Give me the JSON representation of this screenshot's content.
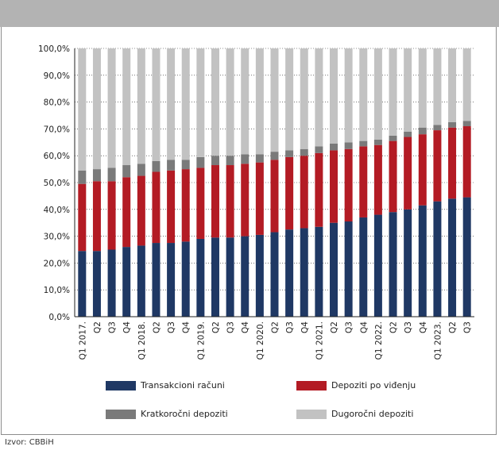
{
  "source_label": "Izvor: CBBiH",
  "chart_data": {
    "type": "bar",
    "stacked": true,
    "ylim": [
      0,
      100
    ],
    "y_ticks": [
      "0,0%",
      "10,0%",
      "20,0%",
      "30,0%",
      "40,0%",
      "50,0%",
      "60,0%",
      "70,0%",
      "80,0%",
      "90,0%",
      "100,0%"
    ],
    "grid": true,
    "legend_position": "bottom",
    "categories": [
      "Q1 2017.",
      "Q2",
      "Q3",
      "Q4",
      "Q1 2018.",
      "Q2",
      "Q3",
      "Q4",
      "Q1 2019.",
      "Q2",
      "Q3",
      "Q4",
      "Q1 2020.",
      "Q2",
      "Q3",
      "Q4",
      "Q1 2021.",
      "Q2",
      "Q3",
      "Q4",
      "Q1 2022.",
      "Q2",
      "Q3",
      "Q4",
      "Q1 2023.",
      "Q2",
      "Q3"
    ],
    "series": [
      {
        "name": "Transakcioni računi",
        "color": "#1f3864",
        "values": [
          24.5,
          24.5,
          25,
          26,
          26.5,
          27.5,
          27.5,
          28,
          29,
          29.5,
          29.5,
          30,
          30.5,
          31.5,
          32.5,
          33,
          33.5,
          35,
          35.5,
          37,
          38,
          39,
          40,
          41.5,
          43,
          44,
          44.5
        ]
      },
      {
        "name": "Depoziti po viđenju",
        "color": "#b31b24",
        "values": [
          25,
          26,
          25.5,
          26,
          26,
          26.5,
          27,
          27,
          26.5,
          27,
          27,
          27,
          27,
          27,
          27,
          27,
          27.5,
          27,
          27,
          26.5,
          26,
          26.5,
          27,
          26.5,
          26.5,
          26.5,
          26.5
        ]
      },
      {
        "name": "Kratkoročni depoziti",
        "color": "#7a7a7a",
        "values": [
          5,
          4.5,
          5,
          4.5,
          4.5,
          4,
          4,
          3.5,
          4,
          3.5,
          3.5,
          3.5,
          3,
          3,
          2.5,
          2.5,
          2.5,
          2.5,
          2.5,
          2,
          2,
          2,
          2,
          2.5,
          2,
          2,
          2
        ]
      },
      {
        "name": "Dugoročni depoziti",
        "color": "#c2c2c2",
        "values": [
          45.5,
          45,
          44.5,
          43.5,
          43,
          42,
          41.5,
          41.5,
          40.5,
          40,
          40,
          39.5,
          39.5,
          38.5,
          38,
          37.5,
          36.5,
          35.5,
          35,
          34.5,
          34,
          32.5,
          31,
          29.5,
          28.5,
          27.5,
          27
        ]
      }
    ]
  }
}
